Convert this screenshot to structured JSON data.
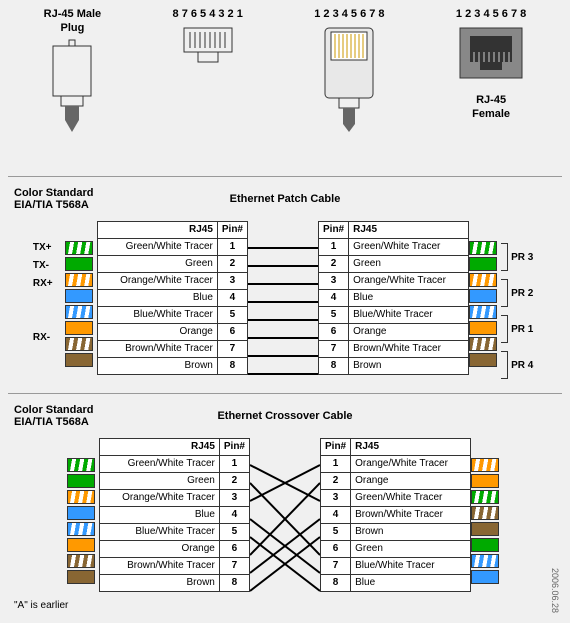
{
  "connectors": {
    "male_plug": {
      "label1": "RJ-45 Male",
      "label2": "Plug"
    },
    "front1": {
      "pins": "8 7 6 5 4 3 2 1"
    },
    "front2": {
      "pins": "1 2 3 4 5 6 7 8"
    },
    "female": {
      "pins": "1 2 3 4 5 6 7 8",
      "label1": "RJ-45",
      "label2": "Female"
    }
  },
  "patch": {
    "standard_line1": "Color  Standard",
    "standard_line2": "EIA/TIA T568A",
    "title": "Ethernet Patch Cable",
    "left_header_name": "RJ45",
    "left_header_num": "Pin#",
    "right_header_num": "Pin#",
    "right_header_name": "RJ45",
    "signals": [
      "TX+",
      "TX-",
      "RX+",
      "",
      "",
      "RX-",
      "",
      ""
    ],
    "left_colors": [
      {
        "cls": "striped green",
        "name": "Green/White Tracer",
        "pin": "1"
      },
      {
        "cls": "solid green",
        "name": "Green",
        "pin": "2"
      },
      {
        "cls": "striped orange",
        "name": "Orange/White Tracer",
        "pin": "3"
      },
      {
        "cls": "solid blue",
        "name": "Blue",
        "pin": "4"
      },
      {
        "cls": "striped blue",
        "name": "Blue/White Tracer",
        "pin": "5"
      },
      {
        "cls": "solid orange",
        "name": "Orange",
        "pin": "6"
      },
      {
        "cls": "striped brown",
        "name": "Brown/White Tracer",
        "pin": "7"
      },
      {
        "cls": "solid brown",
        "name": "Brown",
        "pin": "8"
      }
    ],
    "right_colors": [
      {
        "cls": "striped green",
        "name": "Green/White Tracer",
        "pin": "1"
      },
      {
        "cls": "solid green",
        "name": "Green",
        "pin": "2"
      },
      {
        "cls": "striped orange",
        "name": "Orange/White Tracer",
        "pin": "3"
      },
      {
        "cls": "solid blue",
        "name": "Blue",
        "pin": "4"
      },
      {
        "cls": "striped blue",
        "name": "Blue/White Tracer",
        "pin": "5"
      },
      {
        "cls": "solid orange",
        "name": "Orange",
        "pin": "6"
      },
      {
        "cls": "striped brown",
        "name": "Brown/White Tracer",
        "pin": "7"
      },
      {
        "cls": "solid brown",
        "name": "Brown",
        "pin": "8"
      }
    ],
    "pairs": [
      "PR 3",
      "PR 2",
      "PR 1",
      "PR 2",
      "PR 4"
    ],
    "pair_map": [
      [
        0,
        1
      ],
      [
        2,
        3
      ],
      [
        4,
        5
      ],
      [
        6,
        7
      ]
    ],
    "pair_labels_at": {
      "0": "PR 3",
      "1": "PR 2",
      "2": "PR 1",
      "3": "PR 4"
    }
  },
  "cross": {
    "standard_line1": "Color  Standard",
    "standard_line2": "EIA/TIA T568A",
    "title": "Ethernet Crossover Cable",
    "left_header_name": "RJ45",
    "left_header_num": "Pin#",
    "right_header_num": "Pin#",
    "right_header_name": "RJ45",
    "left_colors": [
      {
        "cls": "striped green",
        "name": "Green/White Tracer",
        "pin": "1"
      },
      {
        "cls": "solid green",
        "name": "Green",
        "pin": "2"
      },
      {
        "cls": "striped orange",
        "name": "Orange/White Tracer",
        "pin": "3"
      },
      {
        "cls": "solid blue",
        "name": "Blue",
        "pin": "4"
      },
      {
        "cls": "striped blue",
        "name": "Blue/White Tracer",
        "pin": "5"
      },
      {
        "cls": "solid orange",
        "name": "Orange",
        "pin": "6"
      },
      {
        "cls": "striped brown",
        "name": "Brown/White Tracer",
        "pin": "7"
      },
      {
        "cls": "solid brown",
        "name": "Brown",
        "pin": "8"
      }
    ],
    "right_colors": [
      {
        "cls": "striped orange",
        "name": "Orange/White Tracer",
        "pin": "1"
      },
      {
        "cls": "solid orange",
        "name": "Orange",
        "pin": "2"
      },
      {
        "cls": "striped green",
        "name": "Green/White Tracer",
        "pin": "3"
      },
      {
        "cls": "striped brown",
        "name": "Brown/White Tracer",
        "pin": "4"
      },
      {
        "cls": "solid brown",
        "name": "Brown",
        "pin": "5"
      },
      {
        "cls": "solid green",
        "name": "Green",
        "pin": "6"
      },
      {
        "cls": "striped blue",
        "name": "Blue/White Tracer",
        "pin": "7"
      },
      {
        "cls": "solid blue",
        "name": "Blue",
        "pin": "8"
      }
    ],
    "cross_map": [
      [
        1,
        3
      ],
      [
        2,
        6
      ],
      [
        3,
        1
      ],
      [
        4,
        7
      ],
      [
        5,
        8
      ],
      [
        6,
        2
      ],
      [
        7,
        4
      ],
      [
        8,
        5
      ]
    ]
  },
  "footer": "\"A\" is earlier",
  "date": "2006.06.28"
}
